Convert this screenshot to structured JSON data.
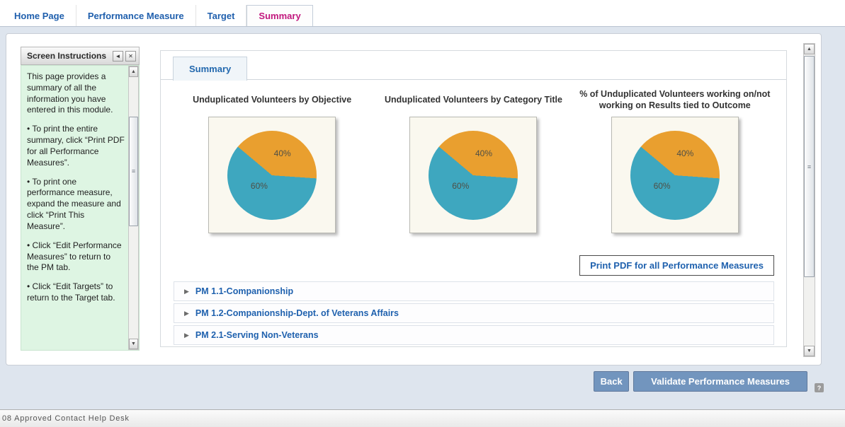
{
  "colors": {
    "active_tab_pink": "#c2187e",
    "tab_blue": "#1f5fad",
    "link_blue": "#1f61ae",
    "pie_orange": "#e99f2f",
    "pie_teal": "#3ea7bf",
    "button_steel_blue": "#7295be",
    "instructions_green": "#def5e3"
  },
  "icons": {
    "collapse_left": "◄",
    "close": "✕",
    "expand_arrow": "▶",
    "scroll_up": "▲",
    "scroll_down": "▼",
    "thumb_grip": "≡",
    "help": "?"
  },
  "tabs": [
    {
      "label": "Home Page",
      "active": false
    },
    {
      "label": "Performance Measure",
      "active": false
    },
    {
      "label": "Target",
      "active": false
    },
    {
      "label": "Summary",
      "active": true
    }
  ],
  "instructions": {
    "title": "Screen Instructions",
    "paragraphs": [
      "This page provides a summary of all the information you have entered in this module.",
      "• To print the entire summary, click “Print PDF for all Performance Measures”.",
      "• To print one performance measure, expand the measure and click “Print This Measure”.",
      "• Click “Edit Performance Measures” to return to the PM tab.",
      "• Click “Edit Targets” to return to the Target tab."
    ]
  },
  "summary_panel": {
    "sub_tab": "Summary",
    "print_button": "Print PDF for all Performance Measures",
    "measures": [
      {
        "label": "PM 1.1-Companionship"
      },
      {
        "label": "PM 1.2-Companionship-Dept. of Veterans Affairs"
      },
      {
        "label": "PM 2.1-Serving Non-Veterans"
      }
    ]
  },
  "chart_data": [
    {
      "type": "pie",
      "title": "Unduplicated Volunteers by Objective",
      "slice_labels": [
        "40%",
        "60%"
      ],
      "values": [
        40,
        60
      ],
      "colors": [
        "#e99f2f",
        "#3ea7bf"
      ],
      "start_angle": -50,
      "legend": "none"
    },
    {
      "type": "pie",
      "title": "Unduplicated Volunteers by Category Title",
      "slice_labels": [
        "40%",
        "60%"
      ],
      "values": [
        40,
        60
      ],
      "colors": [
        "#e99f2f",
        "#3ea7bf"
      ],
      "start_angle": -50,
      "legend": "none"
    },
    {
      "type": "pie",
      "title": "% of Unduplicated Volunteers working on/not working on Results tied to Outcome",
      "slice_labels": [
        "40%",
        "60%"
      ],
      "values": [
        40,
        60
      ],
      "colors": [
        "#e99f2f",
        "#3ea7bf"
      ],
      "start_angle": -50,
      "legend": "none"
    }
  ],
  "footer": {
    "back_button": "Back",
    "validate_button": "Validate Performance Measures",
    "statusbar_text": "08 Approved Contact Help Desk"
  }
}
